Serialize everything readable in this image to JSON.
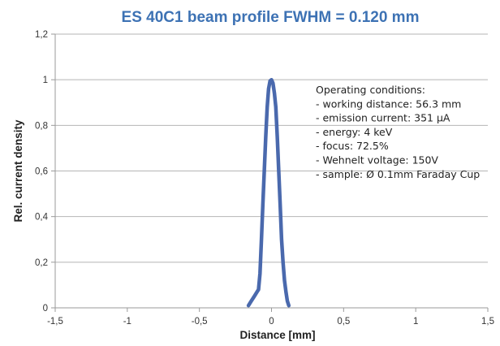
{
  "chart_data": {
    "type": "line",
    "title": "ES 40C1 beam profile  FWHM = 0.120 mm",
    "xlabel": "Distance [mm]",
    "ylabel": "Rel. current density",
    "xlim": [
      -1.5,
      1.5
    ],
    "ylim": [
      0,
      1.2
    ],
    "x_ticks": [
      -1.5,
      -1,
      -0.5,
      0,
      0.5,
      1,
      1.5
    ],
    "x_tick_labels": [
      "-1,5",
      "-1",
      "-0,5",
      "0",
      "0,5",
      "1",
      "1,5"
    ],
    "y_ticks": [
      0,
      0.2,
      0.4,
      0.6,
      0.8,
      1,
      1.2
    ],
    "y_tick_labels": [
      "0",
      "0,2",
      "0,4",
      "0,6",
      "0,8",
      "1",
      "1,2"
    ],
    "grid": "horizontal",
    "legend": "none",
    "series": [
      {
        "x": [
          -0.16,
          -0.14,
          -0.12,
          -0.1,
          -0.09,
          -0.08,
          -0.07,
          -0.06,
          -0.05,
          -0.04,
          -0.03,
          -0.02,
          -0.01,
          0,
          0.01,
          0.02,
          0.03,
          0.04,
          0.05,
          0.06,
          0.07,
          0.08,
          0.09,
          0.1,
          0.11,
          0.12
        ],
        "y": [
          0.01,
          0.03,
          0.05,
          0.07,
          0.08,
          0.15,
          0.3,
          0.45,
          0.6,
          0.75,
          0.88,
          0.96,
          0.995,
          1.0,
          0.985,
          0.94,
          0.88,
          0.75,
          0.6,
          0.45,
          0.3,
          0.2,
          0.12,
          0.07,
          0.03,
          0.01
        ]
      }
    ],
    "annotations": {
      "heading": "Operating conditions:",
      "lines": [
        "- working distance: 56.3 mm",
        "- emission current: 351 μA",
        "- energy: 4 keV",
        "- focus: 72.5%",
        "- Wehnelt voltage: 150V",
        "- sample: Ø 0.1mm Faraday Cup"
      ]
    }
  },
  "colors": {
    "title": "#3d72b4",
    "series": "#4a69ad",
    "grid": "#b5b5b5",
    "axis": "#9a9a9a"
  }
}
